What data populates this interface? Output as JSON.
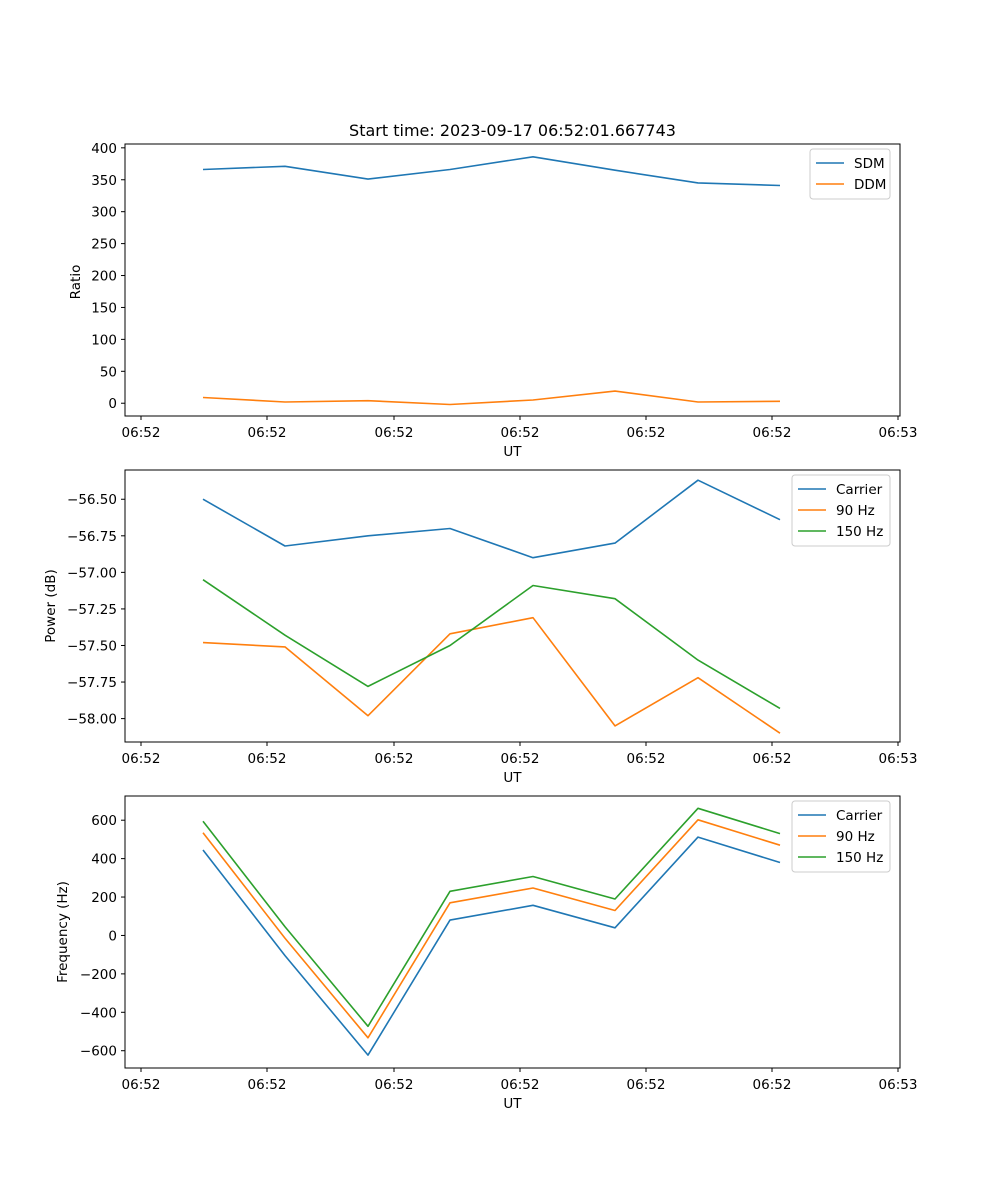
{
  "chart_data": [
    {
      "type": "line",
      "title": "Start time: 2023-09-17 06:52:01.667743",
      "xlabel": "UT",
      "ylabel": "Ratio",
      "x_tick_labels": [
        "06:52",
        "06:52",
        "06:52",
        "06:52",
        "06:52",
        "06:52",
        "06:53"
      ],
      "y_ticks": [
        0,
        50,
        100,
        150,
        200,
        250,
        300,
        350,
        400
      ],
      "ylim": [
        -20,
        406
      ],
      "legend_position": "top-right",
      "series": [
        {
          "name": "SDM",
          "color": "#1f77b4",
          "values": [
            366,
            371,
            351,
            366,
            386,
            365,
            345,
            341
          ]
        },
        {
          "name": "DDM",
          "color": "#ff7f0e",
          "values": [
            9,
            2,
            4,
            -2,
            5,
            19,
            2,
            3
          ]
        }
      ]
    },
    {
      "type": "line",
      "title": "",
      "xlabel": "UT",
      "ylabel": "Power (dB)",
      "x_tick_labels": [
        "06:52",
        "06:52",
        "06:52",
        "06:52",
        "06:52",
        "06:52",
        "06:53"
      ],
      "y_ticks": [
        -58.0,
        -57.75,
        -57.5,
        -57.25,
        -57.0,
        -56.75,
        -56.5
      ],
      "y_tick_labels": [
        "−58.00",
        "−57.75",
        "−57.50",
        "−57.25",
        "−57.00",
        "−56.75",
        "−56.50"
      ],
      "ylim": [
        -58.16,
        -56.3
      ],
      "legend_position": "top-right",
      "series": [
        {
          "name": "Carrier",
          "color": "#1f77b4",
          "values": [
            -56.5,
            -56.82,
            -56.75,
            -56.7,
            -56.9,
            -56.8,
            -56.37,
            -56.64
          ]
        },
        {
          "name": "90 Hz",
          "color": "#ff7f0e",
          "values": [
            -57.48,
            -57.51,
            -57.98,
            -57.42,
            -57.31,
            -58.05,
            -57.72,
            -58.1
          ]
        },
        {
          "name": "150 Hz",
          "color": "#2ca02c",
          "values": [
            -57.05,
            -57.43,
            -57.78,
            -57.5,
            -57.09,
            -57.18,
            -57.6,
            -57.93
          ]
        }
      ]
    },
    {
      "type": "line",
      "title": "",
      "xlabel": "UT",
      "ylabel": "Frequency (Hz)",
      "x_tick_labels": [
        "06:52",
        "06:52",
        "06:52",
        "06:52",
        "06:52",
        "06:52",
        "06:53"
      ],
      "y_ticks": [
        -600,
        -400,
        -200,
        0,
        200,
        400,
        600
      ],
      "y_tick_labels": [
        "−600",
        "−400",
        "−200",
        "0",
        "200",
        "400",
        "600"
      ],
      "ylim": [
        -690,
        726
      ],
      "legend_position": "top-right",
      "series": [
        {
          "name": "Carrier",
          "color": "#1f77b4",
          "values": [
            445,
            -105,
            -623,
            80,
            157,
            40,
            512,
            380
          ]
        },
        {
          "name": "90 Hz",
          "color": "#ff7f0e",
          "values": [
            535,
            -15,
            -533,
            170,
            247,
            130,
            602,
            470
          ]
        },
        {
          "name": "150 Hz",
          "color": "#2ca02c",
          "values": [
            595,
            45,
            -473,
            230,
            307,
            190,
            662,
            530
          ]
        }
      ]
    }
  ]
}
